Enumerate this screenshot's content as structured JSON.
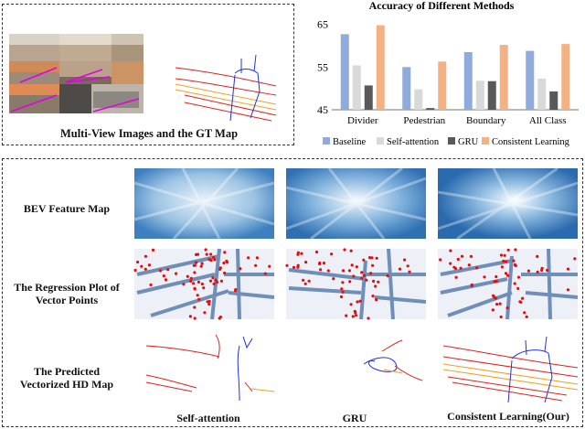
{
  "top_left_panel": {
    "caption": "Multi-View Images and the GT Map"
  },
  "chart_data": {
    "type": "bar",
    "title": "Accuracy of Different Methods",
    "xlabel": "",
    "ylabel": "",
    "categories": [
      "Divider",
      "Pedestrian",
      "Boundary",
      "All Class"
    ],
    "yticks": [
      "45",
      "55",
      "65"
    ],
    "ylim": [
      45,
      66
    ],
    "legend_position": "bottom",
    "grid": false,
    "series": [
      {
        "name": "Baseline",
        "color": "#8faadc",
        "values": [
          62.7,
          55.0,
          58.5,
          58.8
        ]
      },
      {
        "name": "Self-attention",
        "color": "#d9d9d9",
        "values": [
          55.4,
          49.8,
          51.8,
          52.3
        ]
      },
      {
        "name": "GRU",
        "color": "#595959",
        "values": [
          50.7,
          45.4,
          51.7,
          49.3
        ]
      },
      {
        "name": "Consistent Learning",
        "color": "#f4b183",
        "values": [
          64.8,
          56.3,
          60.2,
          60.4
        ]
      }
    ]
  },
  "bottom_panel": {
    "row_labels": {
      "bev": "BEV Feature Map",
      "regression_line1": "The Regression Plot of",
      "regression_line2": "Vector Points",
      "predicted_line1": "The Predicted",
      "predicted_line2": "Vectorized  HD Map"
    },
    "column_labels": [
      "Self-attention",
      "GRU",
      "Consistent Learning(Our)"
    ]
  }
}
